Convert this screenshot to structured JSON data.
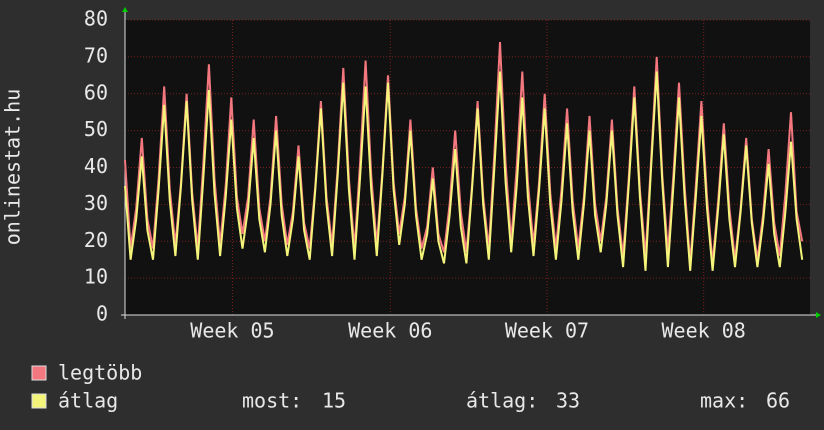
{
  "chart_data": {
    "type": "line",
    "ylabel": "onlinestat.hu",
    "x": [
      0,
      0.25,
      0.5,
      0.75,
      1,
      1.25,
      1.5,
      1.75,
      2,
      2.25,
      2.5,
      2.75,
      3,
      3.25,
      3.5,
      3.75,
      4,
      4.25,
      4.5,
      4.75,
      5,
      5.25,
      5.5,
      5.75,
      6,
      6.25,
      6.5,
      6.75,
      7,
      7.25,
      7.5,
      7.75,
      8,
      8.25,
      8.5,
      8.75,
      9,
      9.25,
      9.5,
      9.75,
      10,
      10.25,
      10.5,
      10.75,
      11,
      11.25,
      11.5,
      11.75,
      12,
      12.25,
      12.5,
      12.75,
      13,
      13.25,
      13.5,
      13.75,
      14,
      14.25,
      14.5,
      14.75,
      15,
      15.25,
      15.5,
      15.75,
      16,
      16.25,
      16.5,
      16.75,
      17,
      17.25,
      17.5,
      17.75,
      18,
      18.25,
      18.5,
      18.75,
      19,
      19.25,
      19.5,
      19.75,
      20,
      20.25,
      20.5,
      20.75,
      21,
      21.25,
      21.5,
      21.75,
      22,
      22.25,
      22.5,
      22.75,
      23,
      23.25,
      23.5,
      23.75,
      24,
      24.25,
      24.5,
      24.75,
      25,
      25.25,
      25.5,
      25.75,
      26,
      26.25,
      26.5,
      26.75,
      27,
      27.25,
      27.5,
      27.75,
      28,
      28.25,
      28.5,
      28.75,
      29,
      29.25,
      29.5,
      29.75,
      30,
      30.25
    ],
    "series": [
      {
        "name": "legtöbb",
        "color": "#f2777e",
        "values": [
          42,
          18,
          29,
          48,
          26,
          18,
          37,
          62,
          34,
          19,
          36,
          60,
          33,
          18,
          41,
          68,
          37,
          19,
          35,
          59,
          32,
          22,
          32,
          53,
          29,
          20,
          32,
          54,
          30,
          19,
          28,
          46,
          25,
          18,
          35,
          58,
          32,
          19,
          40,
          67,
          37,
          18,
          41,
          69,
          38,
          19,
          39,
          65,
          36,
          22,
          32,
          53,
          29,
          18,
          24,
          40,
          22,
          17,
          30,
          50,
          28,
          17,
          35,
          58,
          32,
          18,
          44,
          74,
          41,
          20,
          40,
          66,
          36,
          19,
          36,
          60,
          33,
          18,
          34,
          56,
          31,
          18,
          32,
          54,
          30,
          20,
          32,
          53,
          29,
          16,
          37,
          62,
          34,
          16,
          42,
          70,
          38,
          17,
          38,
          63,
          35,
          14,
          35,
          58,
          32,
          14,
          31,
          52,
          29,
          15,
          29,
          48,
          26,
          15,
          27,
          45,
          25,
          16,
          33,
          55,
          28,
          20
        ]
      },
      {
        "name": "átlag",
        "color": "#f4f47a",
        "values": [
          35,
          15,
          26,
          43,
          23,
          15,
          34,
          57,
          31,
          16,
          35,
          58,
          31,
          15,
          37,
          61,
          33,
          16,
          32,
          53,
          29,
          18,
          29,
          48,
          26,
          17,
          30,
          50,
          27,
          16,
          26,
          43,
          23,
          15,
          34,
          56,
          30,
          16,
          38,
          63,
          34,
          15,
          37,
          62,
          34,
          16,
          38,
          63,
          34,
          19,
          30,
          50,
          27,
          15,
          22,
          37,
          20,
          14,
          27,
          45,
          24,
          14,
          34,
          56,
          30,
          15,
          40,
          66,
          36,
          17,
          35,
          59,
          32,
          16,
          34,
          56,
          30,
          15,
          31,
          52,
          28,
          15,
          30,
          50,
          27,
          17,
          30,
          50,
          27,
          13,
          35,
          59,
          32,
          12,
          40,
          66,
          36,
          13,
          35,
          59,
          32,
          12,
          32,
          54,
          29,
          12,
          29,
          49,
          26,
          13,
          28,
          46,
          25,
          13,
          25,
          41,
          22,
          13,
          28,
          47,
          26,
          15
        ]
      }
    ],
    "xlim": [
      0,
      30.6
    ],
    "xticks": [
      {
        "value": 4.8,
        "label": "Week 05"
      },
      {
        "value": 11.85,
        "label": "Week 06"
      },
      {
        "value": 18.85,
        "label": "Week 07"
      },
      {
        "value": 25.85,
        "label": "Week 08"
      }
    ],
    "ylim": [
      0,
      80
    ],
    "yticks": [
      0,
      10,
      20,
      30,
      40,
      50,
      60,
      70,
      80
    ],
    "grid": true,
    "stats": [
      {
        "label": "most:",
        "value": 15
      },
      {
        "label": "átlag:",
        "value": 33
      },
      {
        "label": "max:",
        "value": 66
      }
    ]
  }
}
